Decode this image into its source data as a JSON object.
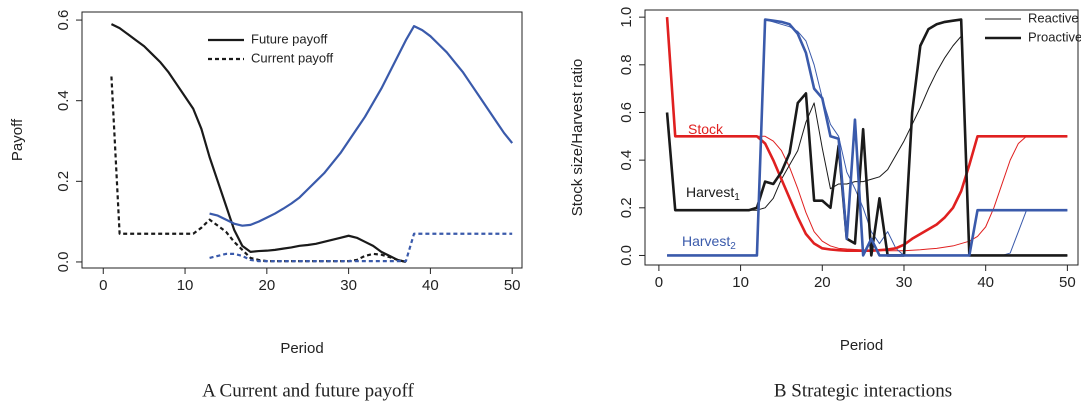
{
  "chart_data": [
    {
      "type": "line",
      "caption": "A Current and future payoff",
      "xlabel": "Period",
      "ylabel": "Payoff",
      "x": [
        1,
        2,
        3,
        4,
        5,
        6,
        7,
        8,
        9,
        10,
        11,
        12,
        13,
        14,
        15,
        16,
        17,
        18,
        19,
        20,
        21,
        22,
        23,
        24,
        25,
        26,
        27,
        28,
        29,
        30,
        31,
        32,
        33,
        34,
        35,
        36,
        37,
        38,
        39,
        40,
        41,
        42,
        43,
        44,
        45,
        46,
        47,
        48,
        49,
        50
      ],
      "xlim": [
        -2.6,
        51.2
      ],
      "xticks": [
        0,
        10,
        20,
        30,
        40,
        50
      ],
      "ylim": [
        -0.015,
        0.62
      ],
      "yticks": [
        {
          "value": 0,
          "label": "0.0"
        },
        {
          "value": 0.2,
          "label": "0.2"
        },
        {
          "value": 0.4,
          "label": "0.4"
        },
        {
          "value": 0.6,
          "label": "0.6"
        }
      ],
      "legend": [
        {
          "name": "Future payoff",
          "linestyle": "solid"
        },
        {
          "name": "Current payoff",
          "linestyle": "dashed"
        }
      ],
      "series": [
        {
          "color": "#1a1a1a",
          "linestyle": "solid",
          "linewidth": 2.2,
          "values": [
            0.59,
            0.58,
            0.565,
            0.55,
            0.535,
            0.515,
            0.495,
            0.47,
            0.44,
            0.41,
            0.38,
            0.33,
            0.26,
            0.2,
            0.14,
            0.08,
            0.04,
            0.025,
            0.027,
            0.028,
            0.03,
            0.033,
            0.036,
            0.04,
            0.042,
            0.045,
            0.05,
            0.055,
            0.06,
            0.065,
            0.06,
            0.05,
            0.04,
            0.025,
            0.015,
            0.005,
            0,
            null,
            null,
            null,
            null,
            null,
            null,
            null,
            null,
            null,
            null,
            null,
            null,
            null
          ]
        },
        {
          "color": "#3a5aab",
          "linestyle": "solid",
          "linewidth": 2.2,
          "values": [
            null,
            null,
            null,
            null,
            null,
            null,
            null,
            null,
            null,
            null,
            null,
            null,
            0.12,
            0.115,
            0.105,
            0.095,
            0.09,
            0.092,
            0.1,
            0.11,
            0.12,
            0.132,
            0.145,
            0.16,
            0.18,
            0.2,
            0.22,
            0.245,
            0.27,
            0.3,
            0.33,
            0.36,
            0.395,
            0.43,
            0.47,
            0.51,
            0.55,
            0.585,
            0.575,
            0.56,
            0.54,
            0.52,
            0.495,
            0.47,
            0.44,
            0.41,
            0.38,
            0.35,
            0.32,
            0.295
          ]
        },
        {
          "color": "#1a1a1a",
          "linestyle": "dashed",
          "linewidth": 2.2,
          "values": [
            0.46,
            0.07,
            0.07,
            0.07,
            0.07,
            0.07,
            0.07,
            0.07,
            0.07,
            0.07,
            0.07,
            0.085,
            0.105,
            0.09,
            0.075,
            0.05,
            0.03,
            0.01,
            0.005,
            0.002,
            0.002,
            0.002,
            0.002,
            0.002,
            0.002,
            0.002,
            0.002,
            0.002,
            0.002,
            0.002,
            0.005,
            0.015,
            0.02,
            0.018,
            0.012,
            0.005,
            0,
            null,
            null,
            null,
            null,
            null,
            null,
            null,
            null,
            null,
            null,
            null,
            null,
            null
          ]
        },
        {
          "color": "#3a5aab",
          "linestyle": "dashed",
          "linewidth": 2.2,
          "values": [
            null,
            null,
            null,
            null,
            null,
            null,
            null,
            null,
            null,
            null,
            null,
            null,
            0.01,
            0.015,
            0.02,
            0.02,
            0.015,
            0.005,
            0.002,
            0.002,
            0.002,
            0.002,
            0.002,
            0.002,
            0.002,
            0.002,
            0.002,
            0.002,
            0.002,
            0.002,
            0.002,
            0.002,
            0.002,
            0.002,
            0.002,
            0.002,
            0.002,
            0.07,
            0.07,
            0.07,
            0.07,
            0.07,
            0.07,
            0.07,
            0.07,
            0.07,
            0.07,
            0.07,
            0.07,
            0.07
          ]
        }
      ]
    },
    {
      "type": "line",
      "caption": "B Strategic interactions",
      "xlabel": "Period",
      "ylabel": "Stock size/Harvest ratio",
      "x": [
        1,
        2,
        3,
        4,
        5,
        6,
        7,
        8,
        9,
        10,
        11,
        12,
        13,
        14,
        15,
        16,
        17,
        18,
        19,
        20,
        21,
        22,
        23,
        24,
        25,
        26,
        27,
        28,
        29,
        30,
        31,
        32,
        33,
        34,
        35,
        36,
        37,
        38,
        39,
        40,
        41,
        42,
        43,
        44,
        45,
        46,
        47,
        48,
        49,
        50
      ],
      "xlim": [
        -1.7,
        51.3
      ],
      "xticks": [
        0,
        10,
        20,
        30,
        40,
        50
      ],
      "ylim": [
        -0.04,
        1.03
      ],
      "yticks": [
        {
          "value": 0,
          "label": "0.0"
        },
        {
          "value": 0.2,
          "label": "0.2"
        },
        {
          "value": 0.4,
          "label": "0.4"
        },
        {
          "value": 0.6,
          "label": "0.6"
        },
        {
          "value": 0.8,
          "label": "0.8"
        },
        {
          "value": 1,
          "label": "1.0"
        }
      ],
      "legend": [
        {
          "name": "Reactive",
          "linewidth": 1
        },
        {
          "name": "Proactive",
          "linewidth": 2.6
        }
      ],
      "annotations": [
        {
          "text": "Stock",
          "color": "#e02020"
        },
        {
          "text": "Harvest",
          "sub": "1",
          "color": "#1a1a1a"
        },
        {
          "text": "Harvest",
          "sub": "2",
          "color": "#3a5aab"
        }
      ],
      "series": [
        {
          "color": "#e02020",
          "linestyle": "solid",
          "linewidth": 1,
          "values": [
            1,
            0.5,
            0.5,
            0.5,
            0.5,
            0.5,
            0.5,
            0.5,
            0.5,
            0.5,
            0.5,
            0.5,
            0.5,
            0.48,
            0.44,
            0.37,
            0.28,
            0.18,
            0.1,
            0.06,
            0.04,
            0.03,
            0.027,
            0.025,
            0.023,
            0.022,
            0.021,
            0.02,
            0.02,
            0.02,
            0.022,
            0.024,
            0.027,
            0.03,
            0.035,
            0.04,
            0.05,
            0.06,
            0.08,
            0.12,
            0.2,
            0.3,
            0.4,
            0.47,
            0.5,
            0.5,
            0.5,
            0.5,
            0.5,
            0.5
          ]
        },
        {
          "color": "#1a1a1a",
          "linestyle": "solid",
          "linewidth": 1,
          "values": [
            0.6,
            0.19,
            0.19,
            0.19,
            0.19,
            0.19,
            0.19,
            0.19,
            0.19,
            0.19,
            0.19,
            0.19,
            0.2,
            0.24,
            0.32,
            0.38,
            0.44,
            0.56,
            0.64,
            0.45,
            0.28,
            0.3,
            0.3,
            0.31,
            0.31,
            0.32,
            0.33,
            0.36,
            0.42,
            0.48,
            0.55,
            0.62,
            0.7,
            0.77,
            0.83,
            0.88,
            0.92,
            0,
            0,
            0,
            0,
            0,
            0,
            0,
            0,
            0,
            0,
            0,
            0,
            0
          ]
        },
        {
          "color": "#3a5aab",
          "linestyle": "solid",
          "linewidth": 1,
          "values": [
            0,
            0,
            0,
            0,
            0,
            0,
            0,
            0,
            0,
            0,
            0,
            0,
            0.99,
            0.98,
            0.97,
            0.96,
            0.94,
            0.9,
            0.8,
            0.66,
            0.55,
            0.5,
            0.35,
            0.28,
            0.2,
            0.1,
            0.05,
            0.1,
            0.03,
            0,
            0,
            0,
            0,
            0,
            0,
            0,
            0,
            0,
            0,
            0,
            0,
            0,
            0.01,
            0.1,
            0.19,
            0.19,
            0.19,
            0.19,
            0.19,
            0.19
          ]
        },
        {
          "color": "#e02020",
          "linestyle": "solid",
          "linewidth": 2.6,
          "values": [
            1,
            0.5,
            0.5,
            0.5,
            0.5,
            0.5,
            0.5,
            0.5,
            0.5,
            0.5,
            0.5,
            0.5,
            0.47,
            0.4,
            0.32,
            0.24,
            0.16,
            0.09,
            0.05,
            0.03,
            0.025,
            0.022,
            0.02,
            0.02,
            0.02,
            0.02,
            0.022,
            0.025,
            0.03,
            0.045,
            0.07,
            0.09,
            0.11,
            0.13,
            0.16,
            0.2,
            0.27,
            0.38,
            0.5,
            0.5,
            0.5,
            0.5,
            0.5,
            0.5,
            0.5,
            0.5,
            0.5,
            0.5,
            0.5,
            0.5
          ]
        },
        {
          "color": "#1a1a1a",
          "linestyle": "solid",
          "linewidth": 2.6,
          "values": [
            0.6,
            0.19,
            0.19,
            0.19,
            0.19,
            0.19,
            0.19,
            0.19,
            0.19,
            0.19,
            0.19,
            0.2,
            0.31,
            0.3,
            0.35,
            0.43,
            0.64,
            0.68,
            0.23,
            0.23,
            0.2,
            0.46,
            0.07,
            0.05,
            0.53,
            0,
            0.24,
            0,
            0,
            0,
            0.6,
            0.88,
            0.95,
            0.97,
            0.98,
            0.985,
            0.99,
            0,
            0,
            0,
            0,
            0,
            0,
            0,
            0,
            0,
            0,
            0,
            0,
            0
          ]
        },
        {
          "color": "#3a5aab",
          "linestyle": "solid",
          "linewidth": 2.6,
          "values": [
            0,
            0,
            0,
            0,
            0,
            0,
            0,
            0,
            0,
            0,
            0,
            0,
            0.99,
            0.985,
            0.98,
            0.97,
            0.93,
            0.85,
            0.7,
            0.66,
            0.5,
            0.49,
            0.07,
            0.57,
            0,
            0.07,
            0,
            0,
            0,
            0,
            0,
            0,
            0,
            0,
            0,
            0,
            0,
            0,
            0.19,
            0.19,
            0.19,
            0.19,
            0.19,
            0.19,
            0.19,
            0.19,
            0.19,
            0.19,
            0.19,
            0.19
          ]
        }
      ]
    }
  ]
}
